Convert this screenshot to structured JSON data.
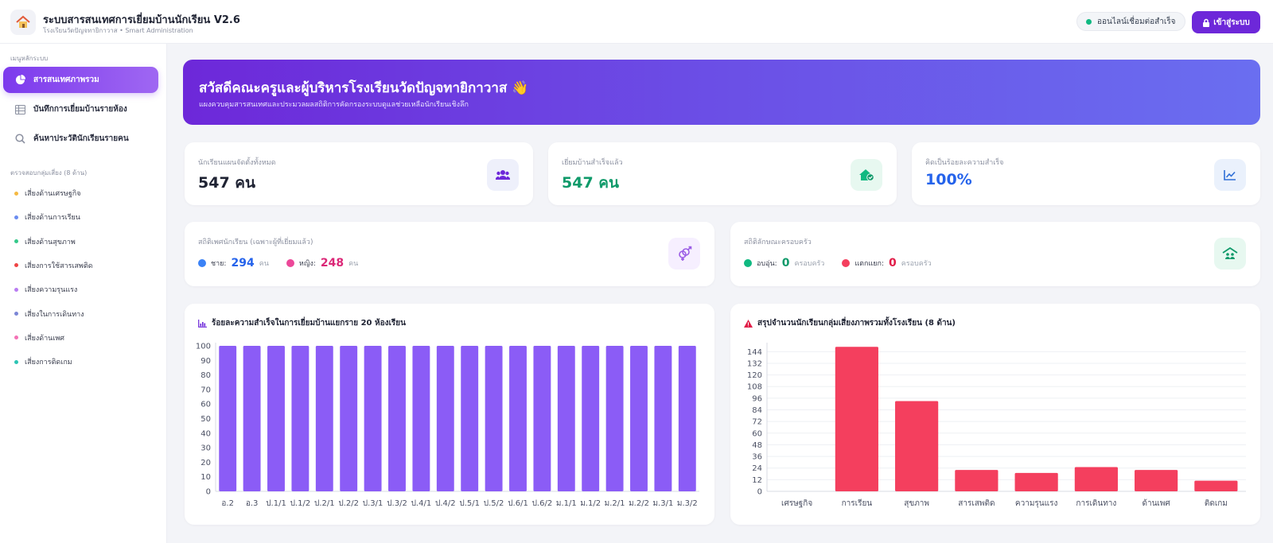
{
  "app": {
    "title": "ระบบสารสนเทศการเยี่ยมบ้านนักเรียน V2.6",
    "subtitle": "โรงเรียนวัดปัญจทายิกาวาส • Smart Administration",
    "status": "ออนไลน์เชื่อมต่อสำเร็จ",
    "login_label": "เข้าสู่ระบบ"
  },
  "sidebar": {
    "main_heading": "เมนูหลักระบบ",
    "items": [
      {
        "label": "สารสนเทศภาพรวม",
        "icon": "pie-chart-icon"
      },
      {
        "label": "บันทึกการเยี่ยมบ้านรายห้อง",
        "icon": "table-icon"
      },
      {
        "label": "ค้นหาประวัตินักเรียนรายคน",
        "icon": "search-icon"
      }
    ],
    "risk_heading": "ตรวจสอบกลุ่มเสี่ยง (8 ด้าน)",
    "risks": [
      {
        "label": "เสี่ยงด้านเศรษฐกิจ",
        "color": "#f5b942"
      },
      {
        "label": "เสี่ยงด้านการเรียน",
        "color": "#6b8cf0"
      },
      {
        "label": "เสี่ยงด้านสุขภาพ",
        "color": "#34c98a"
      },
      {
        "label": "เสี่ยงการใช้สารเสพติด",
        "color": "#ef4444"
      },
      {
        "label": "เสี่ยงความรุนแรง",
        "color": "#b97cf2"
      },
      {
        "label": "เสี่ยงในการเดินทาง",
        "color": "#7b86d6"
      },
      {
        "label": "เสี่ยงด้านเพศ",
        "color": "#f472b6"
      },
      {
        "label": "เสี่ยงการติดเกม",
        "color": "#2cc4b4"
      }
    ]
  },
  "banner": {
    "title": "สวัสดีคณะครูและผู้บริหารโรงเรียนวัดปัญจทายิกาวาส 👋",
    "subtitle": "แผงควบคุมสารสนเทศและประมวลผลสถิติการคัดกรองระบบดูแลช่วยเหลือนักเรียนเชิงลึก"
  },
  "stats": [
    {
      "label": "นักเรียนแผนจัดตั้งทั้งหมด",
      "value": "547 คน",
      "color": "#1f2333",
      "icon": "users-icon",
      "icon_bg": "#eef0fb",
      "icon_color": "#6d28d9"
    },
    {
      "label": "เยี่ยมบ้านสำเร็จแล้ว",
      "value": "547 คน",
      "color": "#0f9a6a",
      "icon": "house-check-icon",
      "icon_bg": "#e7f8f0",
      "icon_color": "#10b981"
    },
    {
      "label": "คิดเป็นร้อยละความสำเร็จ",
      "value": "100%",
      "color": "#2563eb",
      "icon": "trend-chart-icon",
      "icon_bg": "#eaf1fc",
      "icon_color": "#2f6fd6"
    }
  ],
  "gender": {
    "label": "สถิติเพศนักเรียน (เฉพาะผู้ที่เยี่ยมแล้ว)",
    "male_label": "ชาย:",
    "male_value": "294",
    "male_unit": "คน",
    "male_color": "#2563eb",
    "female_label": "หญิง:",
    "female_value": "248",
    "female_unit": "คน",
    "female_color": "#db2777"
  },
  "family": {
    "label": "สถิติลักษณะครอบครัว",
    "warm_label": "อบอุ่น:",
    "warm_value": "0",
    "warm_unit": "ครอบครัว",
    "warm_color": "#0f9a6a",
    "broken_label": "แตกแยก:",
    "broken_value": "0",
    "broken_unit": "ครอบครัว",
    "broken_color": "#e11d48"
  },
  "chart_data": [
    {
      "type": "bar",
      "title": "ร้อยละความสำเร็จในการเยี่ยมบ้านแยกราย 20 ห้องเรียน",
      "categories": [
        "อ.2",
        "อ.3",
        "ป.1/1",
        "ป.1/2",
        "ป.2/1",
        "ป.2/2",
        "ป.3/1",
        "ป.3/2",
        "ป.4/1",
        "ป.4/2",
        "ป.5/1",
        "ป.5/2",
        "ป.6/1",
        "ป.6/2",
        "ม.1/1",
        "ม.1/2",
        "ม.2/1",
        "ม.2/2",
        "ม.3/1",
        "ม.3/2"
      ],
      "values": [
        100,
        100,
        100,
        100,
        100,
        100,
        100,
        100,
        100,
        100,
        100,
        100,
        100,
        100,
        100,
        100,
        100,
        100,
        100,
        100
      ],
      "ylim": [
        0,
        100
      ],
      "yticks": [
        "0",
        "10",
        "20",
        "30",
        "40",
        "50",
        "60",
        "70",
        "80",
        "90",
        "100"
      ],
      "color": "#8b5cf6",
      "grid": false
    },
    {
      "type": "bar",
      "title": "สรุปจำนวนนักเรียนกลุ่มเสี่ยงภาพรวมทั้งโรงเรียน (8 ด้าน)",
      "categories": [
        "เศรษฐกิจ",
        "การเรียน",
        "สุขภาพ",
        "สารเสพติด",
        "ความรุนแรง",
        "การเดินทาง",
        "ด้านเพศ",
        "ติดเกม"
      ],
      "values": [
        0,
        149,
        93,
        22,
        19,
        25,
        22,
        11
      ],
      "ylim": [
        0,
        150
      ],
      "yticks": [
        "0",
        "12",
        "24",
        "36",
        "48",
        "60",
        "72",
        "84",
        "96",
        "108",
        "120",
        "132",
        "144"
      ],
      "color": "#f43f5e",
      "grid": true
    }
  ]
}
